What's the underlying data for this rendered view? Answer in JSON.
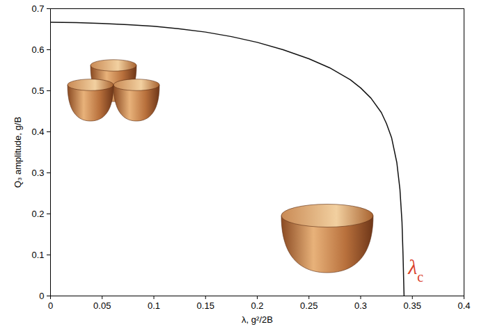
{
  "chart_data": {
    "type": "line",
    "x_label": "λ, g²/2B",
    "y_label": "Q₃ amplitude, g/B",
    "x": [
      0,
      0.025,
      0.05,
      0.075,
      0.1,
      0.125,
      0.15,
      0.175,
      0.2,
      0.225,
      0.25,
      0.27,
      0.29,
      0.3,
      0.31,
      0.32,
      0.325,
      0.33,
      0.335,
      0.338,
      0.34,
      0.341,
      0.342
    ],
    "series": [
      {
        "name": "Q₃ amplitude",
        "color": "#111111",
        "values": [
          0.667,
          0.666,
          0.664,
          0.661,
          0.657,
          0.651,
          0.643,
          0.632,
          0.618,
          0.6,
          0.578,
          0.556,
          0.527,
          0.507,
          0.482,
          0.447,
          0.42,
          0.385,
          0.325,
          0.26,
          0.18,
          0.1,
          0
        ]
      }
    ],
    "xlim": [
      0,
      0.4
    ],
    "xticks": [
      0,
      0.05,
      0.1,
      0.15,
      0.2,
      0.25,
      0.3,
      0.35,
      0.4
    ],
    "ylim": [
      0,
      0.7
    ],
    "yticks": [
      0,
      0.1,
      0.2,
      0.3,
      0.4,
      0.5,
      0.6,
      0.7
    ],
    "grid": false,
    "annotations": [
      {
        "text": "λc",
        "x": 0.346,
        "y": 0.07,
        "color": "#d9412b"
      }
    ]
  }
}
